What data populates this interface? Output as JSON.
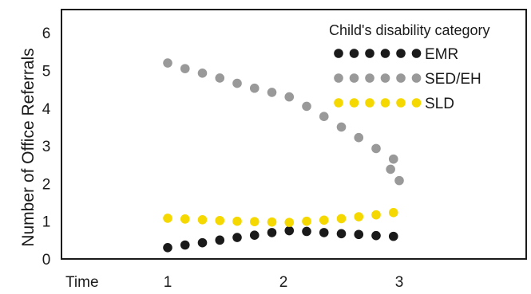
{
  "chart_data": {
    "type": "scatter",
    "ylabel": "Number of Office Referrals",
    "x_axis_name": "Time",
    "x_ticks": [
      1,
      2,
      3
    ],
    "y_ticks": [
      0,
      1,
      2,
      3,
      4,
      5,
      6
    ],
    "xlim": [
      0,
      4.1
    ],
    "ylim": [
      0,
      6.6
    ],
    "grid": false,
    "legend": {
      "title": "Child's disability category",
      "placement": "top-right"
    },
    "x": [
      1,
      1.15,
      1.3,
      1.45,
      1.6,
      1.75,
      1.9,
      2.05,
      2.2,
      2.35,
      2.5,
      2.65,
      2.8,
      2.95
    ],
    "series": [
      {
        "name": "EMR",
        "color": "#1a1a1a",
        "values": [
          0.3,
          0.37,
          0.43,
          0.5,
          0.57,
          0.63,
          0.7,
          0.75,
          0.73,
          0.7,
          0.67,
          0.65,
          0.62,
          0.6
        ]
      },
      {
        "name": "SED/EH",
        "color": "#999999",
        "values": [
          5.2,
          5.05,
          4.93,
          4.8,
          4.66,
          4.53,
          4.42,
          4.3,
          4.05,
          3.78,
          3.5,
          3.22,
          2.93,
          2.65
        ]
      },
      {
        "name": "SLD",
        "color": "#f5d800",
        "values": [
          1.08,
          1.06,
          1.04,
          1.02,
          1.0,
          0.99,
          0.98,
          0.97,
          1.0,
          1.03,
          1.07,
          1.12,
          1.17,
          1.23
        ]
      }
    ],
    "tail": {
      "SED/EH": [
        2.38,
        2.08
      ]
    }
  }
}
